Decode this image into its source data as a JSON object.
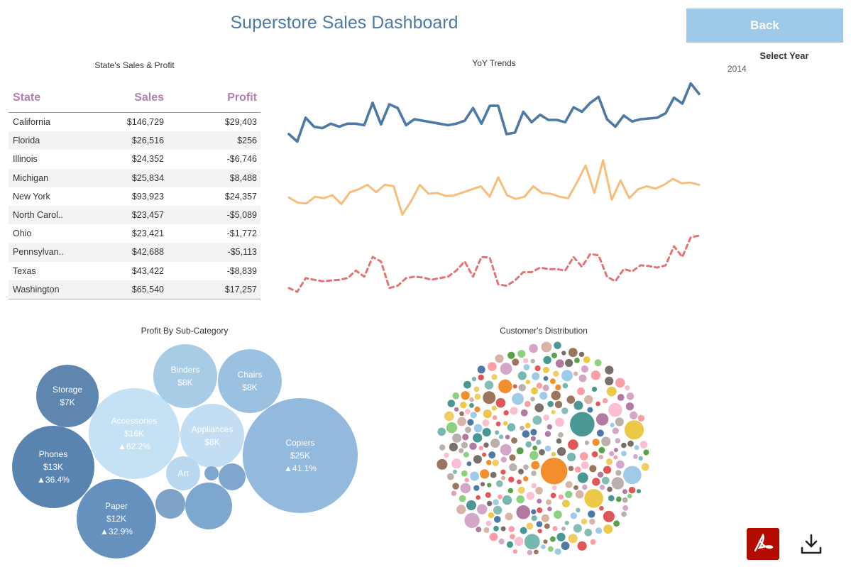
{
  "header": {
    "title": "Superstore Sales Dashboard",
    "back_label": "Back"
  },
  "filter": {
    "label": "Select Year",
    "value": "2014"
  },
  "state_table": {
    "title": "State's Sales & Profit",
    "columns": [
      "State",
      "Sales",
      "Profit"
    ],
    "rows": [
      [
        "California",
        "$146,729",
        "$29,403"
      ],
      [
        "Florida",
        "$26,516",
        "$256"
      ],
      [
        "Illinois",
        "$24,352",
        "-$6,746"
      ],
      [
        "Michigan",
        "$25,834",
        "$8,488"
      ],
      [
        "New York",
        "$93,923",
        "$24,357"
      ],
      [
        "North Carol..",
        "$23,457",
        "-$5,089"
      ],
      [
        "Ohio",
        "$23,421",
        "-$1,772"
      ],
      [
        "Pennsylvan..",
        "$42,688",
        "-$5,113"
      ],
      [
        "Texas",
        "$43,422",
        "-$8,839"
      ],
      [
        "Washington",
        "$65,540",
        "$17,257"
      ]
    ]
  },
  "yoy": {
    "title": "YoY Trends",
    "colors": [
      "#4e79a7",
      "#f6bd7b",
      "#e57373"
    ],
    "series": [
      {
        "style": "solid",
        "values": [
          0.2,
          0.1,
          0.42,
          0.3,
          0.28,
          0.34,
          0.3,
          0.34,
          0.34,
          0.32,
          0.62,
          0.33,
          0.6,
          0.55,
          0.32,
          0.4,
          0.38,
          0.36,
          0.34,
          0.32,
          0.34,
          0.38,
          0.55,
          0.34,
          0.58,
          0.58,
          0.2,
          0.22,
          0.5,
          0.36,
          0.46,
          0.39,
          0.39,
          0.36,
          0.56,
          0.5,
          0.62,
          0.7,
          0.4,
          0.3,
          0.45,
          0.37,
          0.4,
          0.41,
          0.42,
          0.48,
          0.69,
          0.61,
          0.88,
          0.74
        ]
      },
      {
        "style": "solid",
        "values": [
          0.35,
          0.28,
          0.27,
          0.36,
          0.34,
          0.38,
          0.26,
          0.42,
          0.46,
          0.52,
          0.42,
          0.52,
          0.5,
          0.12,
          0.3,
          0.52,
          0.4,
          0.41,
          0.37,
          0.38,
          0.42,
          0.46,
          0.5,
          0.36,
          0.62,
          0.38,
          0.33,
          0.36,
          0.5,
          0.41,
          0.4,
          0.36,
          0.34,
          0.55,
          0.78,
          0.41,
          0.85,
          0.32,
          0.58,
          0.34,
          0.46,
          0.5,
          0.47,
          0.52,
          0.6,
          0.54,
          0.55,
          0.52
        ]
      },
      {
        "style": "dashed",
        "values": [
          0.15,
          0.1,
          0.28,
          0.26,
          0.24,
          0.25,
          0.26,
          0.28,
          0.38,
          0.3,
          0.56,
          0.5,
          0.15,
          0.18,
          0.28,
          0.3,
          0.29,
          0.26,
          0.28,
          0.3,
          0.38,
          0.5,
          0.3,
          0.56,
          0.55,
          0.2,
          0.18,
          0.25,
          0.36,
          0.36,
          0.42,
          0.4,
          0.4,
          0.38,
          0.56,
          0.43,
          0.6,
          0.58,
          0.3,
          0.24,
          0.4,
          0.37,
          0.45,
          0.44,
          0.42,
          0.45,
          0.7,
          0.56,
          0.82,
          0.84
        ]
      }
    ]
  },
  "subcategory": {
    "title": "Profit By Sub-Category",
    "bubbles": [
      {
        "name": "Storage",
        "value": "$7K",
        "pct": "",
        "color": "#5f86ae"
      },
      {
        "name": "Phones",
        "value": "$13K",
        "pct": "▲36.4%",
        "color": "#5a84b0"
      },
      {
        "name": "Paper",
        "value": "$12K",
        "pct": "▲32.9%",
        "color": "#6690bd"
      },
      {
        "name": "Accessories",
        "value": "$16K",
        "pct": "▲62.2%",
        "color": "#c5e1f4"
      },
      {
        "name": "Binders",
        "value": "$8K",
        "pct": "",
        "color": "#a8cbe6"
      },
      {
        "name": "Chairs",
        "value": "$8K",
        "pct": "",
        "color": "#9ac1e0"
      },
      {
        "name": "Appliances",
        "value": "$8K",
        "pct": "",
        "color": "#c3def2"
      },
      {
        "name": "Art",
        "value": "",
        "pct": "",
        "color": "#b9d7ee"
      },
      {
        "name": "Copiers",
        "value": "$25K",
        "pct": "▲41.1%",
        "color": "#93b9dc"
      },
      {
        "name": "",
        "value": "",
        "pct": "",
        "color": "#7fa6cd"
      },
      {
        "name": "",
        "value": "",
        "pct": "",
        "color": "#7fa6cd"
      },
      {
        "name": "",
        "value": "",
        "pct": "",
        "color": "#7fa2c8"
      },
      {
        "name": "",
        "value": "",
        "pct": "",
        "color": "#7ea7cf"
      }
    ]
  },
  "customers": {
    "title": "Customer's Distribution",
    "palette": [
      "#4e79a7",
      "#f28e2b",
      "#e15759",
      "#76b7b2",
      "#59a14f",
      "#edc948",
      "#b07aa1",
      "#ff9da7",
      "#9c755f",
      "#bab0ac",
      "#8cd17d",
      "#a0cbe8",
      "#86bcb6",
      "#d4a6c8",
      "#d7b5a6",
      "#499894",
      "#79706e",
      "#f1ce63",
      "#fabfd2"
    ]
  },
  "actions": {
    "pdf_label": "PDF export",
    "download_label": "Download"
  }
}
